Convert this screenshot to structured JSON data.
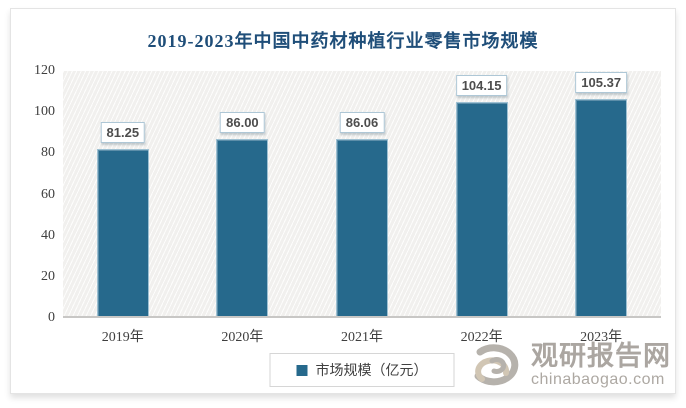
{
  "chart_data": {
    "type": "bar",
    "title": "2019-2023年中国中药材种植行业零售市场规模",
    "categories": [
      "2019年",
      "2020年",
      "2021年",
      "2022年",
      "2023年"
    ],
    "values": [
      81.25,
      86.0,
      86.06,
      104.15,
      105.37
    ],
    "value_labels": [
      "81.25",
      "86.00",
      "86.06",
      "104.15",
      "105.37"
    ],
    "ylim": [
      0,
      120
    ],
    "yticks": [
      0,
      20,
      40,
      60,
      80,
      100,
      120
    ],
    "legend": "市场规模（亿元）",
    "legend_position": "bottom",
    "grid": "off",
    "xlabel": "",
    "ylabel": ""
  },
  "colors": {
    "bar": "#26698c",
    "bar_border": "#9dc0d2",
    "title": "#1f4e79",
    "axis_text": "#3f3f3f",
    "plot_background": "#f1f0ee",
    "watermark_gray": "#a7a29c",
    "logo_tan": "#cfc3b1"
  },
  "watermark": {
    "name": "观研报告网",
    "domain": "chinabaogao.com"
  }
}
